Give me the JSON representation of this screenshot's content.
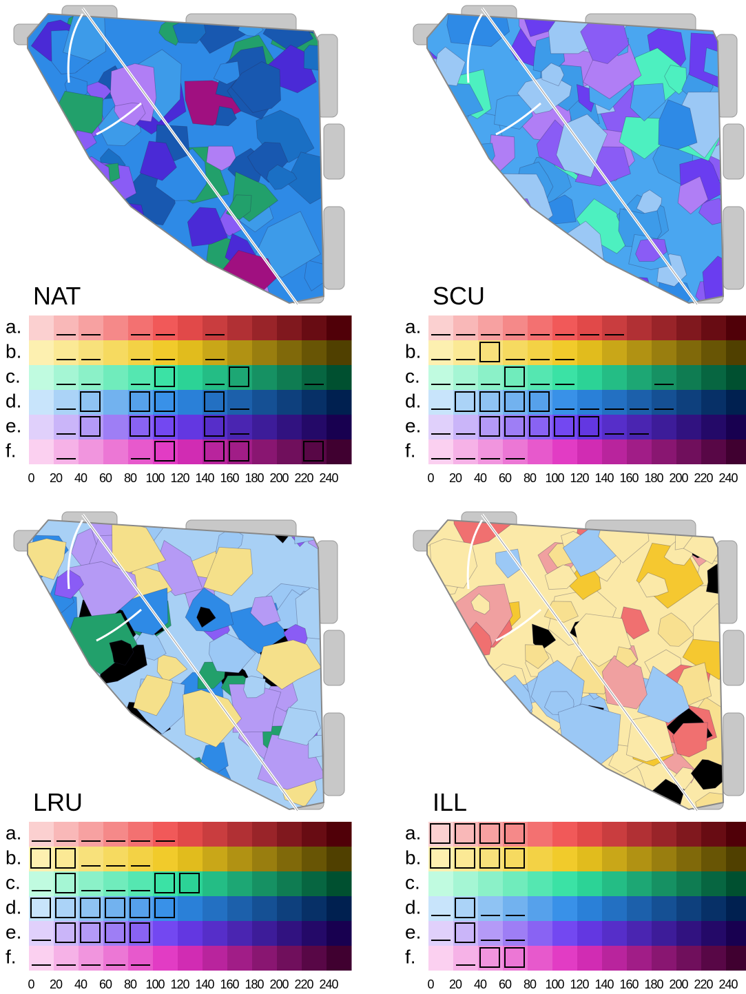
{
  "panels": [
    {
      "title": "NAT",
      "rows": [
        "a.",
        "b.",
        "c.",
        "d.",
        "e.",
        "f."
      ],
      "ticks": [
        "0",
        "20",
        "40",
        "60",
        "80",
        "100",
        "120",
        "140",
        "160",
        "180",
        "200",
        "220",
        "240"
      ]
    },
    {
      "title": "SCU",
      "rows": [
        "a.",
        "b.",
        "c.",
        "d.",
        "e.",
        "f."
      ],
      "ticks": [
        "0",
        "20",
        "40",
        "60",
        "80",
        "100",
        "120",
        "140",
        "160",
        "180",
        "200",
        "220",
        "240"
      ]
    },
    {
      "title": "LRU",
      "rows": [
        "a.",
        "b.",
        "c.",
        "d.",
        "e.",
        "f."
      ],
      "ticks": [
        "0",
        "20",
        "40",
        "60",
        "80",
        "100",
        "120",
        "140",
        "160",
        "180",
        "200",
        "220",
        "240"
      ]
    },
    {
      "title": "ILL",
      "rows": [
        "a.",
        "b.",
        "c.",
        "d.",
        "e.",
        "f."
      ],
      "ticks": [
        "0",
        "20",
        "40",
        "60",
        "80",
        "100",
        "120",
        "140",
        "160",
        "180",
        "200",
        "220",
        "240"
      ]
    }
  ]
}
